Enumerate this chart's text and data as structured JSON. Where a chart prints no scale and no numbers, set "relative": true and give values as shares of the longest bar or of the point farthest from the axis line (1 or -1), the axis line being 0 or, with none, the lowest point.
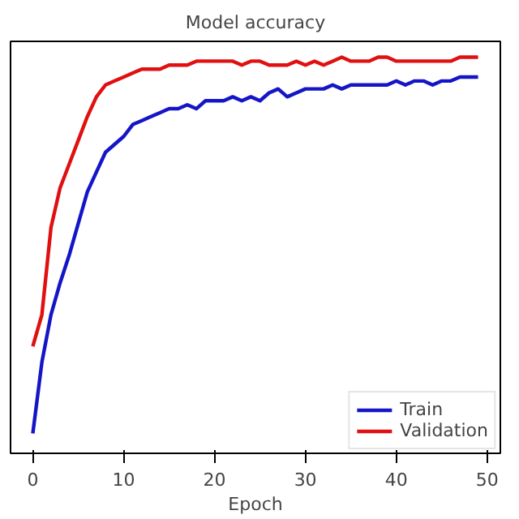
{
  "chart_data": {
    "type": "line",
    "title": "Model accuracy",
    "xlabel": "Epoch",
    "relative": true,
    "x": [
      0,
      1,
      2,
      3,
      4,
      5,
      6,
      7,
      8,
      9,
      10,
      11,
      12,
      13,
      14,
      15,
      16,
      17,
      18,
      19,
      20,
      21,
      22,
      23,
      24,
      25,
      26,
      27,
      28,
      29,
      30,
      31,
      32,
      33,
      34,
      35,
      36,
      37,
      38,
      39,
      40,
      41,
      42,
      43,
      44,
      45,
      46,
      47,
      48,
      49
    ],
    "xlim": [
      -2.45,
      51.45
    ],
    "xticks": [
      0,
      10,
      20,
      30,
      40,
      50
    ],
    "series": [
      {
        "name": "Train",
        "color": "#1515c8",
        "values": [
          0.05,
          0.23,
          0.35,
          0.43,
          0.5,
          0.58,
          0.66,
          0.71,
          0.76,
          0.78,
          0.8,
          0.83,
          0.84,
          0.85,
          0.86,
          0.87,
          0.87,
          0.88,
          0.87,
          0.89,
          0.89,
          0.89,
          0.9,
          0.89,
          0.9,
          0.89,
          0.91,
          0.92,
          0.9,
          0.91,
          0.92,
          0.92,
          0.92,
          0.93,
          0.92,
          0.93,
          0.93,
          0.93,
          0.93,
          0.93,
          0.94,
          0.93,
          0.94,
          0.94,
          0.93,
          0.94,
          0.94,
          0.95,
          0.95,
          0.95
        ]
      },
      {
        "name": "Validation",
        "color": "#e01010",
        "values": [
          0.27,
          0.35,
          0.57,
          0.67,
          0.73,
          0.79,
          0.85,
          0.9,
          0.93,
          0.94,
          0.95,
          0.96,
          0.97,
          0.97,
          0.97,
          0.98,
          0.98,
          0.98,
          0.99,
          0.99,
          0.99,
          0.99,
          0.99,
          0.98,
          0.99,
          0.99,
          0.98,
          0.98,
          0.98,
          0.99,
          0.98,
          0.99,
          0.98,
          0.99,
          1.0,
          0.99,
          0.99,
          0.99,
          1.0,
          1.0,
          0.99,
          0.99,
          0.99,
          0.99,
          0.99,
          0.99,
          0.99,
          1.0,
          1.0,
          1.0
        ]
      }
    ],
    "legend": "bottom right",
    "grid": false,
    "marker": "none",
    "line_style": "solid"
  }
}
